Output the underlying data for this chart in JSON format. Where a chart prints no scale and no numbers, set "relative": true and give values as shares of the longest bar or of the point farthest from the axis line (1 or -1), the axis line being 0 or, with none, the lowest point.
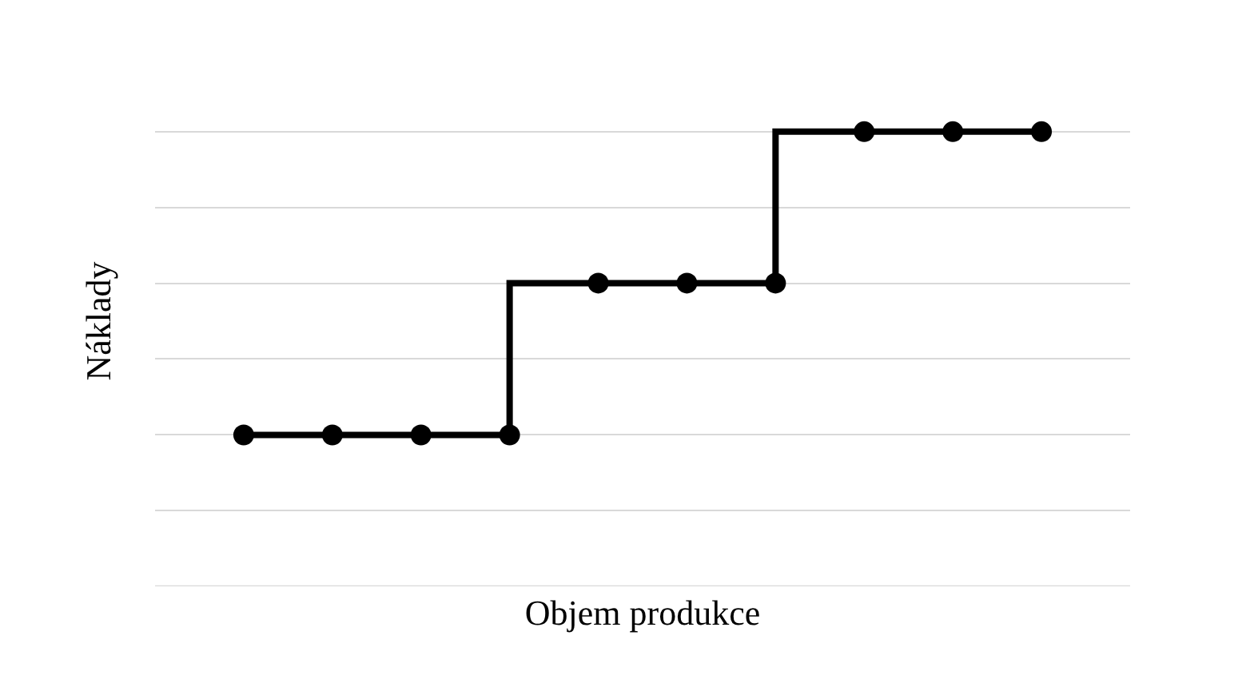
{
  "chart_data": {
    "type": "step",
    "xlabel": "Objem produkce",
    "ylabel": "Náklady",
    "relative": true,
    "categories": [
      null,
      null,
      null,
      null,
      null,
      null,
      null,
      null,
      null,
      null
    ],
    "grid": "y",
    "marker": "circle",
    "line_style": "solid",
    "series": [
      {
        "color": "#000000",
        "values": [
          0.333,
          0.333,
          0.333,
          0.333,
          0.667,
          0.667,
          0.667,
          1,
          1,
          1
        ]
      }
    ]
  }
}
